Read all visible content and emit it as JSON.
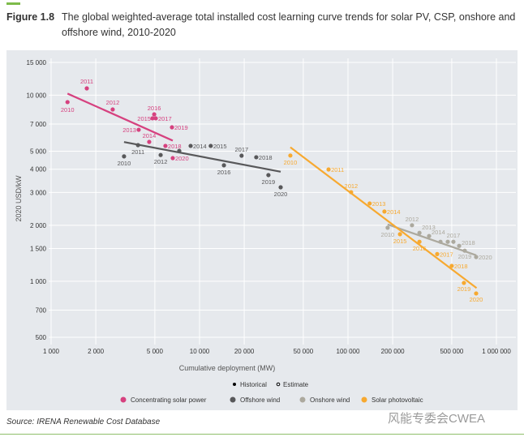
{
  "figure": {
    "number": "Figure 1.8",
    "title": "The global weighted-average total installed cost learning curve trends for solar PV, CSP, onshore and offshore wind, 2010-2020"
  },
  "source": "Source: IRENA Renewable Cost Database",
  "watermark": "风能专委会CWEA",
  "chart_data": {
    "type": "scatter",
    "xlabel": "Cumulative deployment (MW)",
    "ylabel": "2020 USD/kW",
    "xscale": "log",
    "yscale": "log",
    "xlim": [
      1000,
      1000000
    ],
    "ylim": [
      500,
      15000
    ],
    "xticks": [
      1000,
      2000,
      5000,
      10000,
      20000,
      50000,
      100000,
      200000,
      500000,
      1000000
    ],
    "xtick_labels": [
      "1 000",
      "2 000",
      "5 000",
      "10 000",
      "20 000",
      "50 000",
      "100 000",
      "200 000",
      "500 000",
      "1 000 000"
    ],
    "yticks": [
      500,
      700,
      1000,
      1500,
      2000,
      3000,
      4000,
      5000,
      7000,
      10000,
      15000
    ],
    "ytick_labels": [
      "500",
      "700",
      "1 000",
      "1 500",
      "2 000",
      "3 000",
      "4 000",
      "5 000",
      "7 000",
      "10 000",
      "15 000"
    ],
    "grid": true,
    "marker_legend": [
      "Historical",
      "Estimate"
    ],
    "legend_position": "bottom",
    "series": [
      {
        "name": "Concentrating solar power",
        "color": "#d6417f",
        "trend": [
          [
            1290,
            10200
          ],
          [
            6600,
            5700
          ]
        ],
        "points": [
          {
            "year": "2010",
            "x": 1290,
            "y": 9180
          },
          {
            "year": "2011",
            "x": 1740,
            "y": 10880
          },
          {
            "year": "2012",
            "x": 2600,
            "y": 8380
          },
          {
            "year": "2013",
            "x": 3890,
            "y": 6520
          },
          {
            "year": "2014",
            "x": 4580,
            "y": 5610
          },
          {
            "year": "2015",
            "x": 4820,
            "y": 7510
          },
          {
            "year": "2016",
            "x": 4950,
            "y": 7890
          },
          {
            "year": "2017",
            "x": 5070,
            "y": 7510
          },
          {
            "year": "2018",
            "x": 5890,
            "y": 5340
          },
          {
            "year": "2019",
            "x": 6520,
            "y": 6720
          },
          {
            "year": "2020",
            "x": 6600,
            "y": 4590
          }
        ]
      },
      {
        "name": "Offshore wind",
        "color": "#58585a",
        "trend": [
          [
            3100,
            5600
          ],
          [
            35200,
            3880
          ]
        ],
        "points": [
          {
            "year": "2010",
            "x": 3100,
            "y": 4690
          },
          {
            "year": "2011",
            "x": 3850,
            "y": 5390
          },
          {
            "year": "2012",
            "x": 5470,
            "y": 4770
          },
          {
            "year": "",
            "x": 7300,
            "y": 5020
          },
          {
            "year": "2014",
            "x": 8710,
            "y": 5340
          },
          {
            "year": "2015",
            "x": 11900,
            "y": 5340
          },
          {
            "year": "2016",
            "x": 14600,
            "y": 4200
          },
          {
            "year": "2017",
            "x": 19200,
            "y": 4730
          },
          {
            "year": "2018",
            "x": 24100,
            "y": 4640
          },
          {
            "year": "2019",
            "x": 29100,
            "y": 3720
          },
          {
            "year": "2020",
            "x": 35200,
            "y": 3200
          }
        ]
      },
      {
        "name": "Onshore wind",
        "color": "#aca99e",
        "trend": [
          [
            185000,
            2020
          ],
          [
            730000,
            1380
          ]
        ],
        "points": [
          {
            "year": "2010",
            "x": 185000,
            "y": 1940
          },
          {
            "year": "2012",
            "x": 270000,
            "y": 2000
          },
          {
            "year": "2013",
            "x": 303000,
            "y": 1820
          },
          {
            "year": "2014",
            "x": 352000,
            "y": 1750
          },
          {
            "year": "",
            "x": 420000,
            "y": 1630
          },
          {
            "year": "",
            "x": 470000,
            "y": 1630
          },
          {
            "year": "2017",
            "x": 513000,
            "y": 1630
          },
          {
            "year": "2018",
            "x": 561000,
            "y": 1550
          },
          {
            "year": "2019",
            "x": 612000,
            "y": 1460
          },
          {
            "year": "2020",
            "x": 730000,
            "y": 1350
          }
        ]
      },
      {
        "name": "Solar photovoltaic",
        "color": "#f7a930",
        "trend": [
          [
            40900,
            5250
          ],
          [
            735000,
            920
          ]
        ],
        "points": [
          {
            "year": "2010",
            "x": 40900,
            "y": 4740
          },
          {
            "year": "2011",
            "x": 74000,
            "y": 3990
          },
          {
            "year": "2012",
            "x": 105000,
            "y": 3010
          },
          {
            "year": "2013",
            "x": 140000,
            "y": 2620
          },
          {
            "year": "2014",
            "x": 176000,
            "y": 2370
          },
          {
            "year": "2015",
            "x": 224000,
            "y": 1790
          },
          {
            "year": "2016",
            "x": 303000,
            "y": 1630
          },
          {
            "year": "2017",
            "x": 399000,
            "y": 1400
          },
          {
            "year": "2018",
            "x": 500000,
            "y": 1210
          },
          {
            "year": "2019",
            "x": 604000,
            "y": 980
          },
          {
            "year": "2020",
            "x": 730000,
            "y": 860
          }
        ]
      }
    ]
  }
}
